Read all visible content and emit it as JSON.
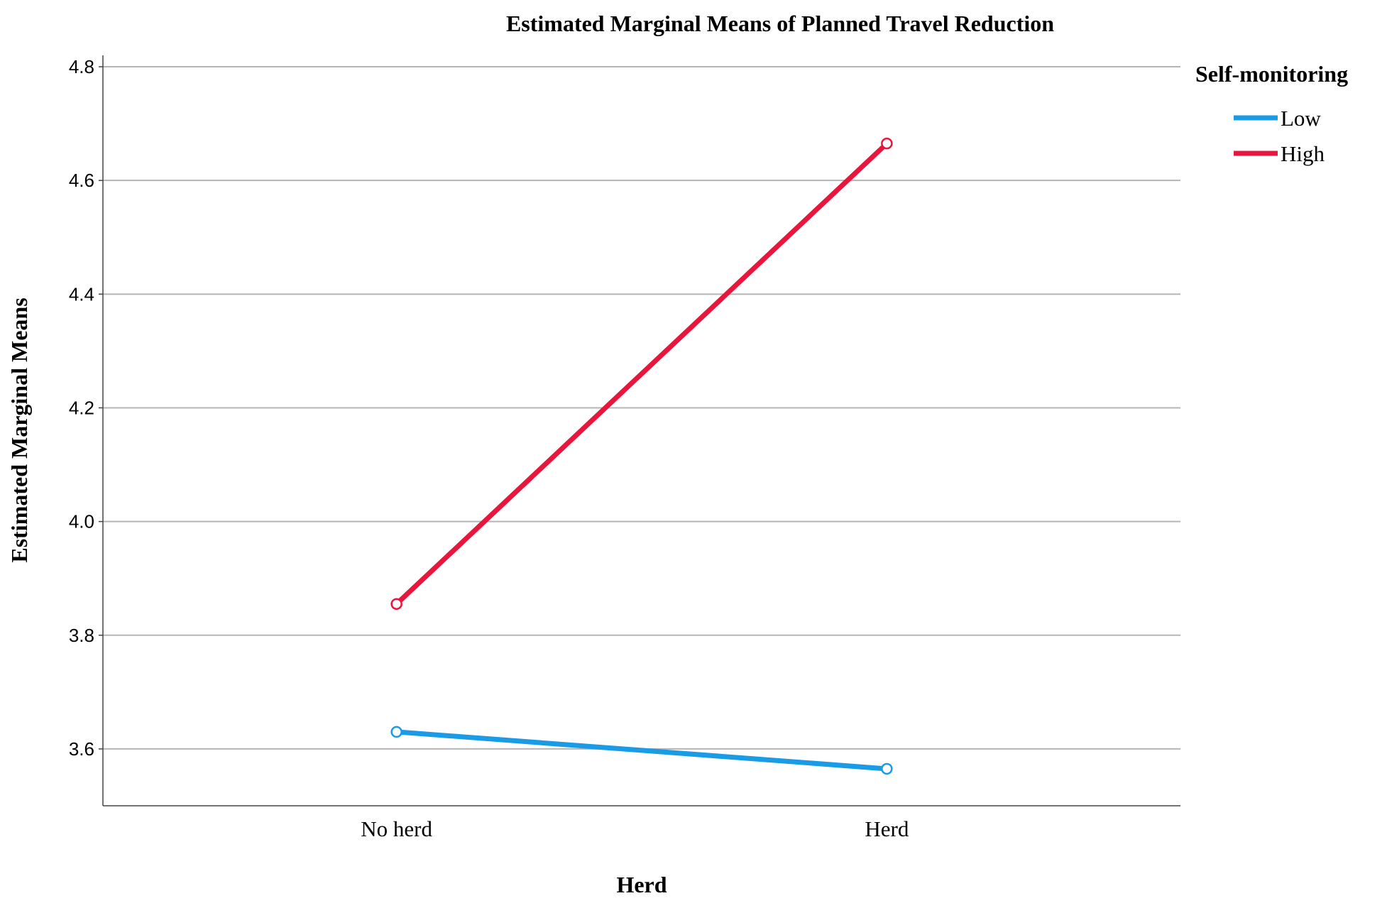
{
  "chart_data": {
    "type": "line",
    "title": "Estimated Marginal Means of Planned Travel Reduction",
    "xlabel": "Herd",
    "ylabel": "Estimated Marginal Means",
    "categories": [
      "No herd",
      "Herd"
    ],
    "ylim": [
      3.5,
      4.82
    ],
    "yticks": [
      "3.6",
      "3.8",
      "4.0",
      "4.2",
      "4.4",
      "4.6",
      "4.8"
    ],
    "grid": "horizontal",
    "legend": {
      "title": "Self-monitoring",
      "placement": "top-right"
    },
    "series": [
      {
        "name": "Low",
        "color": "#1a9be6",
        "values": [
          3.63,
          3.565
        ]
      },
      {
        "name": "High",
        "color": "#e8163c",
        "values": [
          3.855,
          4.665
        ]
      }
    ]
  }
}
